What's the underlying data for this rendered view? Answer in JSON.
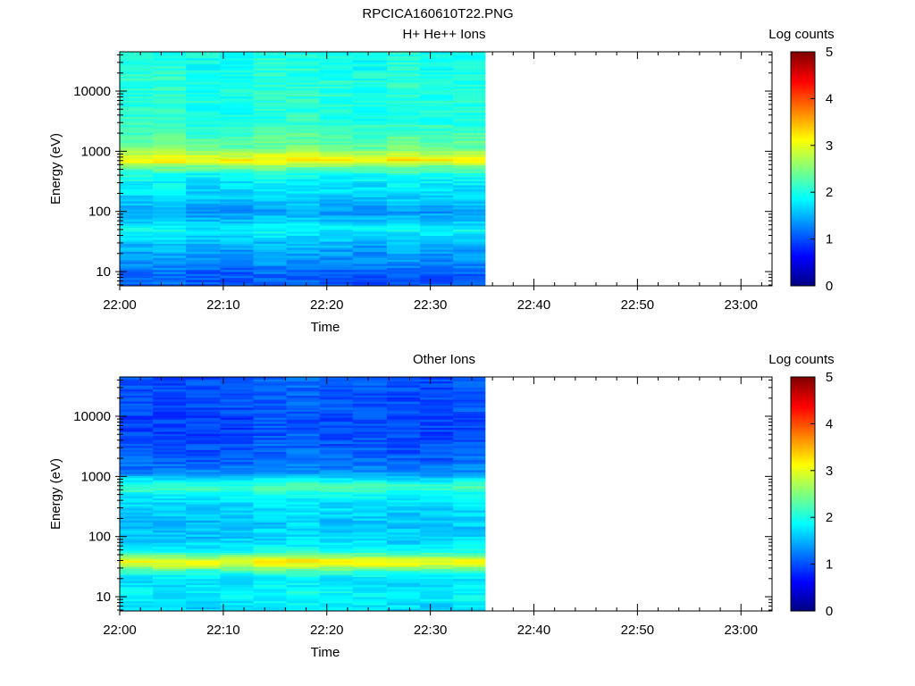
{
  "page": {
    "title": "RPCICA160610T22.PNG"
  },
  "chart_data": [
    {
      "type": "heatmap",
      "title": "H+ He++ Ions",
      "xlabel": "Time",
      "ylabel": "Energy (eV)",
      "colorbar_label": "Log counts",
      "x_tick_labels": [
        "22:00",
        "22:10",
        "22:20",
        "22:30",
        "22:40",
        "22:50",
        "23:00"
      ],
      "y_tick_labels": [
        "10",
        "100",
        "1000",
        "10000"
      ],
      "colorbar_tick_labels": [
        "0",
        "1",
        "2",
        "3",
        "4",
        "5"
      ],
      "x_range_minutes": [
        0,
        63
      ],
      "data_end_minutes": 35.3,
      "time_bin_starts_minutes": [
        0,
        3.2,
        6.4,
        9.7,
        12.9,
        16.1,
        19.3,
        22.5,
        25.8,
        29.0,
        32.2
      ],
      "ylim": [
        5.8,
        45000
      ],
      "log_y": true,
      "colorscale": "jet",
      "zlim": [
        0,
        5
      ],
      "energy_profile": [
        {
          "energy": 6.5,
          "log_counts": 1.1
        },
        {
          "energy": 9,
          "log_counts": 1.1
        },
        {
          "energy": 13,
          "log_counts": 1.3
        },
        {
          "energy": 19,
          "log_counts": 1.4
        },
        {
          "energy": 27,
          "log_counts": 1.5
        },
        {
          "energy": 38,
          "log_counts": 1.7
        },
        {
          "energy": 50,
          "log_counts": 1.9
        },
        {
          "energy": 70,
          "log_counts": 1.6
        },
        {
          "energy": 100,
          "log_counts": 1.4
        },
        {
          "energy": 140,
          "log_counts": 1.55
        },
        {
          "energy": 200,
          "log_counts": 1.7
        },
        {
          "energy": 290,
          "log_counts": 1.8
        },
        {
          "energy": 420,
          "log_counts": 2.0
        },
        {
          "energy": 570,
          "log_counts": 2.5
        },
        {
          "energy": 700,
          "log_counts": 3.2
        },
        {
          "energy": 850,
          "log_counts": 2.9
        },
        {
          "energy": 1150,
          "log_counts": 2.4
        },
        {
          "energy": 1600,
          "log_counts": 2.3
        },
        {
          "energy": 2300,
          "log_counts": 2.15
        },
        {
          "energy": 3300,
          "log_counts": 2.05
        },
        {
          "energy": 5000,
          "log_counts": 2.05
        },
        {
          "energy": 8000,
          "log_counts": 2.05
        },
        {
          "energy": 14000,
          "log_counts": 2.05
        },
        {
          "energy": 25000,
          "log_counts": 2.0
        },
        {
          "energy": 42000,
          "log_counts": 2.0
        }
      ]
    },
    {
      "type": "heatmap",
      "title": "Other Ions",
      "xlabel": "Time",
      "ylabel": "Energy (eV)",
      "colorbar_label": "Log counts",
      "x_tick_labels": [
        "22:00",
        "22:10",
        "22:20",
        "22:30",
        "22:40",
        "22:50",
        "23:00"
      ],
      "y_tick_labels": [
        "10",
        "100",
        "1000",
        "10000"
      ],
      "colorbar_tick_labels": [
        "0",
        "1",
        "2",
        "3",
        "4",
        "5"
      ],
      "x_range_minutes": [
        0,
        63
      ],
      "data_end_minutes": 35.3,
      "time_bin_starts_minutes": [
        0,
        3.2,
        6.4,
        9.7,
        12.9,
        16.1,
        19.3,
        22.5,
        25.8,
        29.0,
        32.2
      ],
      "ylim": [
        5.8,
        45000
      ],
      "log_y": true,
      "colorscale": "jet",
      "zlim": [
        0,
        5
      ],
      "energy_profile": [
        {
          "energy": 6.5,
          "log_counts": 1.75
        },
        {
          "energy": 9,
          "log_counts": 1.85
        },
        {
          "energy": 13,
          "log_counts": 1.85
        },
        {
          "energy": 19,
          "log_counts": 1.7
        },
        {
          "energy": 27,
          "log_counts": 2.2
        },
        {
          "energy": 33,
          "log_counts": 2.9
        },
        {
          "energy": 40,
          "log_counts": 3.2
        },
        {
          "energy": 47,
          "log_counts": 2.5
        },
        {
          "energy": 60,
          "log_counts": 1.9
        },
        {
          "energy": 85,
          "log_counts": 1.7
        },
        {
          "energy": 120,
          "log_counts": 1.65
        },
        {
          "energy": 170,
          "log_counts": 1.6
        },
        {
          "energy": 250,
          "log_counts": 1.7
        },
        {
          "energy": 360,
          "log_counts": 1.75
        },
        {
          "energy": 500,
          "log_counts": 1.9
        },
        {
          "energy": 650,
          "log_counts": 2.3
        },
        {
          "energy": 800,
          "log_counts": 2.0
        },
        {
          "energy": 1100,
          "log_counts": 1.4
        },
        {
          "energy": 1600,
          "log_counts": 1.2
        },
        {
          "energy": 2400,
          "log_counts": 1.1
        },
        {
          "energy": 3600,
          "log_counts": 1.05
        },
        {
          "energy": 5500,
          "log_counts": 1.0
        },
        {
          "energy": 9000,
          "log_counts": 1.0
        },
        {
          "energy": 15000,
          "log_counts": 1.05
        },
        {
          "energy": 26000,
          "log_counts": 1.05
        },
        {
          "energy": 42000,
          "log_counts": 1.05
        }
      ]
    }
  ]
}
